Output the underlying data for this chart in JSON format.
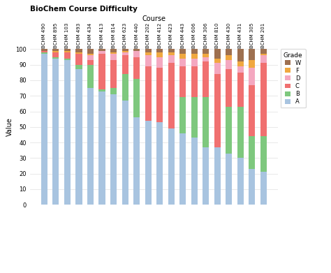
{
  "title": "BioChem Course Difficulty",
  "xlabel": "Course",
  "ylabel": "Value",
  "grades": [
    "A",
    "B",
    "C",
    "D",
    "F",
    "W"
  ],
  "colors": {
    "A": "#a8c4e0",
    "B": "#7ec87e",
    "C": "#f07070",
    "D": "#f4a8c0",
    "F": "#f0a840",
    "W": "#9e7050"
  },
  "courses": [
    "BCHM 490",
    "BCHM 895",
    "BCHM 103",
    "BCHM 493",
    "BCHM 434",
    "BCHM 413",
    "BCHM 814",
    "BCHM 623",
    "BCHM 440",
    "BCHM 202",
    "BCHM 412",
    "BCHM 423",
    "BCHM 443",
    "BCHM 606",
    "BCHM 306",
    "BCHM 810",
    "BCHM 430",
    "BCHM 431",
    "BCHM 305",
    "BCHM 201"
  ],
  "data": {
    "A": [
      97,
      94,
      93,
      87,
      75,
      73,
      71,
      67,
      56,
      54,
      53,
      49,
      46,
      43,
      37,
      37,
      33,
      30,
      23,
      21
    ],
    "B": [
      1,
      1,
      1,
      3,
      15,
      1,
      4,
      17,
      25,
      0,
      0,
      0,
      23,
      26,
      32,
      0,
      30,
      33,
      21,
      23
    ],
    "C": [
      1,
      3,
      4,
      7,
      3,
      23,
      18,
      12,
      14,
      35,
      35,
      42,
      20,
      20,
      23,
      47,
      24,
      22,
      33,
      47
    ],
    "D": [
      0,
      0,
      0,
      0,
      3,
      2,
      4,
      2,
      4,
      7,
      7,
      5,
      5,
      5,
      3,
      7,
      6,
      4,
      11,
      5
    ],
    "F": [
      0,
      1,
      1,
      1,
      1,
      0,
      1,
      1,
      0,
      2,
      3,
      2,
      3,
      3,
      2,
      3,
      3,
      3,
      5,
      1
    ],
    "W": [
      1,
      1,
      1,
      2,
      3,
      1,
      2,
      1,
      1,
      2,
      2,
      2,
      3,
      3,
      3,
      6,
      4,
      8,
      7,
      3
    ]
  },
  "figsize": [
    4.74,
    3.91
  ],
  "dpi": 100
}
